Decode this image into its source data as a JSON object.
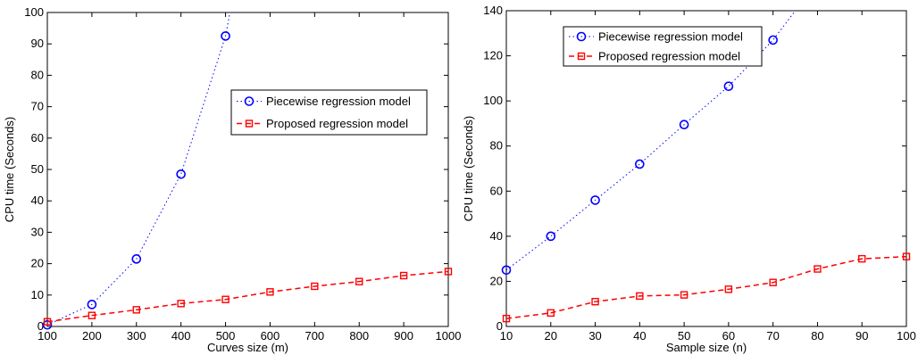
{
  "chart_data": [
    {
      "type": "line",
      "xlabel": "Curves size (m)",
      "ylabel": "CPU time (Seconds)",
      "xlim": [
        100,
        1000
      ],
      "ylim": [
        0,
        100
      ],
      "xticks": [
        100,
        200,
        300,
        400,
        500,
        600,
        700,
        800,
        900,
        1000
      ],
      "yticks": [
        0,
        10,
        20,
        30,
        40,
        50,
        60,
        70,
        80,
        90,
        100
      ],
      "legend_position": "right",
      "series": [
        {
          "name": "Piecewise regression model",
          "color": "#0000ff",
          "line_style": "dotted",
          "marker": "circle",
          "x": [
            100,
            200,
            300,
            400,
            500
          ],
          "y": [
            0.5,
            7,
            21.5,
            48.5,
            92.5
          ],
          "curve_extends_to": [
            530,
            115
          ]
        },
        {
          "name": "Proposed regression model",
          "color": "#ff0000",
          "line_style": "dashed",
          "marker": "square",
          "x": [
            100,
            200,
            300,
            400,
            500,
            600,
            700,
            800,
            900,
            1000
          ],
          "y": [
            1.5,
            3.5,
            5.3,
            7.3,
            8.6,
            11,
            12.8,
            14.3,
            16.2,
            17.5
          ]
        }
      ]
    },
    {
      "type": "line",
      "xlabel": "Sample size (n)",
      "ylabel": "CPU time (Seconds)",
      "xlim": [
        10,
        100
      ],
      "ylim": [
        0,
        140
      ],
      "xticks": [
        10,
        20,
        30,
        40,
        50,
        60,
        70,
        80,
        90,
        100
      ],
      "yticks": [
        0,
        20,
        40,
        60,
        80,
        100,
        120,
        140
      ],
      "legend_position": "top",
      "series": [
        {
          "name": "Piecewise regression model",
          "color": "#0000ff",
          "line_style": "dotted",
          "marker": "circle",
          "x": [
            10,
            20,
            30,
            40,
            50,
            60,
            70
          ],
          "y": [
            25,
            40,
            56,
            72,
            89.5,
            106.5,
            127
          ],
          "curve_extends_to": [
            75,
            140
          ]
        },
        {
          "name": "Proposed regression model",
          "color": "#ff0000",
          "line_style": "dashed",
          "marker": "square",
          "x": [
            10,
            20,
            30,
            40,
            50,
            60,
            70,
            80,
            90,
            100
          ],
          "y": [
            3.5,
            6,
            11,
            13.5,
            14,
            16.5,
            19.5,
            25.5,
            30,
            31
          ]
        }
      ]
    }
  ]
}
